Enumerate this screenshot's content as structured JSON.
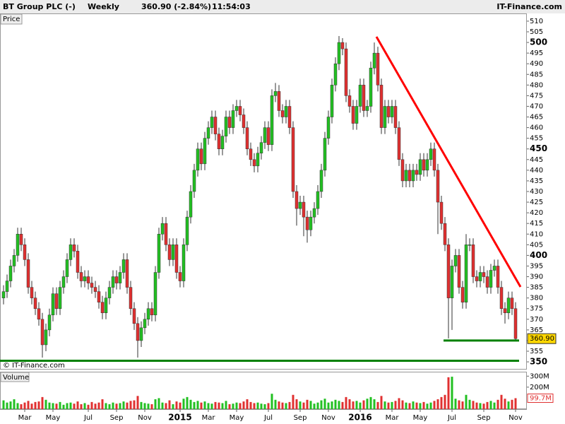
{
  "chart_data": {
    "type": "candlestick",
    "title": "BT Group PLC (-)",
    "period": "Weekly",
    "change": "360.90 (-2.84%)",
    "time": "11:54:03",
    "brand": "IT-Finance.com",
    "price_label": "Price",
    "volume_label": "Volume",
    "copyright": "© IT-Finance.com",
    "up_color": "#22c022",
    "down_color": "#e03030",
    "categories": [
      null,
      null,
      null,
      null,
      null,
      null,
      "Mar",
      null,
      null,
      null,
      null,
      null,
      null,
      null,
      "May",
      null,
      null,
      null,
      null,
      null,
      null,
      null,
      null,
      null,
      "Jul",
      null,
      null,
      null,
      null,
      null,
      null,
      null,
      "Sep",
      null,
      null,
      null,
      null,
      null,
      null,
      null,
      "Nov",
      null,
      null,
      null,
      null,
      null,
      null,
      null,
      null,
      null,
      "2015",
      null,
      null,
      null,
      null,
      null,
      null,
      null,
      "Mar",
      null,
      null,
      null,
      null,
      null,
      null,
      null,
      "May",
      null,
      null,
      null,
      null,
      null,
      null,
      null,
      null,
      "Jul",
      null,
      null,
      null,
      null,
      null,
      null,
      null,
      null,
      "Sep",
      null,
      null,
      null,
      null,
      null,
      null,
      null,
      "Nov",
      null,
      null,
      null,
      null,
      null,
      null,
      null,
      null,
      "2016",
      null,
      null,
      null,
      null,
      null,
      null,
      null,
      null,
      "Mar",
      null,
      null,
      null,
      null,
      null,
      null,
      null,
      "May",
      null,
      null,
      null,
      null,
      null,
      null,
      null,
      null,
      "Jul",
      null,
      null,
      null,
      null,
      null,
      null,
      null,
      null,
      "Sep",
      null,
      null,
      null,
      null,
      null,
      null,
      null,
      null,
      "Nov"
    ],
    "open": [
      380,
      383,
      388,
      395,
      400,
      410,
      405,
      398,
      385,
      380,
      375,
      370,
      358,
      365,
      372,
      382,
      375,
      385,
      390,
      398,
      405,
      402,
      392,
      388,
      390,
      387,
      385,
      383,
      378,
      373,
      380,
      385,
      390,
      387,
      392,
      398,
      385,
      375,
      368,
      360,
      366,
      370,
      375,
      372,
      392,
      410,
      415,
      405,
      398,
      405,
      392,
      388,
      405,
      418,
      430,
      440,
      450,
      443,
      455,
      460,
      465,
      457,
      450,
      456,
      465,
      460,
      468,
      470,
      466,
      460,
      450,
      445,
      442,
      448,
      453,
      460,
      452,
      475,
      477,
      468,
      465,
      470,
      460,
      430,
      422,
      425,
      418,
      412,
      418,
      422,
      430,
      440,
      455,
      465,
      480,
      490,
      500,
      497,
      475,
      470,
      462,
      470,
      480,
      468,
      470,
      488,
      495,
      480,
      460,
      470,
      465,
      470,
      460,
      445,
      435,
      440,
      435,
      440,
      438,
      445,
      440,
      445,
      450,
      440,
      425,
      415,
      405,
      380,
      395,
      400,
      385,
      378,
      405,
      405,
      390,
      388,
      392,
      390,
      385,
      393,
      395,
      385,
      375,
      373,
      380,
      375
    ],
    "high": [
      386,
      391,
      398,
      403,
      413,
      413,
      408,
      401,
      388,
      383,
      378,
      373,
      368,
      375,
      385,
      385,
      388,
      393,
      401,
      408,
      408,
      405,
      395,
      393,
      393,
      390,
      388,
      386,
      381,
      383,
      388,
      393,
      393,
      395,
      401,
      401,
      388,
      378,
      371,
      369,
      373,
      378,
      378,
      395,
      413,
      418,
      418,
      408,
      408,
      408,
      395,
      408,
      421,
      433,
      443,
      453,
      453,
      458,
      463,
      468,
      468,
      460,
      459,
      468,
      468,
      471,
      473,
      473,
      469,
      463,
      453,
      448,
      451,
      456,
      463,
      463,
      478,
      481,
      480,
      471,
      473,
      473,
      463,
      433,
      428,
      428,
      421,
      421,
      425,
      433,
      443,
      458,
      468,
      483,
      493,
      503,
      502,
      500,
      478,
      473,
      473,
      483,
      483,
      473,
      491,
      500,
      498,
      483,
      473,
      473,
      473,
      473,
      463,
      448,
      443,
      443,
      443,
      443,
      448,
      448,
      448,
      453,
      453,
      443,
      428,
      418,
      408,
      398,
      403,
      403,
      388,
      410,
      408,
      408,
      393,
      395,
      395,
      393,
      396,
      398,
      398,
      388,
      378,
      383,
      383,
      378
    ],
    "low": [
      377,
      380,
      385,
      392,
      397,
      402,
      395,
      382,
      377,
      372,
      367,
      352,
      355,
      362,
      369,
      372,
      372,
      382,
      387,
      395,
      399,
      389,
      385,
      385,
      384,
      382,
      380,
      375,
      370,
      370,
      377,
      382,
      384,
      384,
      389,
      382,
      372,
      365,
      352,
      357,
      363,
      367,
      369,
      369,
      389,
      407,
      402,
      395,
      395,
      389,
      385,
      385,
      402,
      415,
      427,
      437,
      440,
      440,
      452,
      457,
      454,
      447,
      447,
      453,
      457,
      457,
      465,
      463,
      457,
      447,
      442,
      439,
      439,
      445,
      450,
      449,
      449,
      472,
      465,
      462,
      462,
      457,
      427,
      414,
      419,
      409,
      406,
      409,
      415,
      419,
      427,
      437,
      452,
      462,
      477,
      487,
      494,
      472,
      467,
      459,
      459,
      467,
      465,
      465,
      467,
      485,
      477,
      457,
      457,
      462,
      462,
      457,
      442,
      432,
      432,
      432,
      432,
      435,
      435,
      437,
      437,
      442,
      437,
      410,
      412,
      402,
      361,
      365,
      392,
      382,
      375,
      375,
      402,
      387,
      385,
      385,
      387,
      382,
      382,
      390,
      382,
      372,
      368,
      370,
      372,
      360
    ],
    "close": [
      383,
      388,
      395,
      400,
      410,
      405,
      398,
      385,
      380,
      375,
      370,
      358,
      365,
      372,
      382,
      375,
      385,
      390,
      398,
      405,
      402,
      392,
      388,
      390,
      387,
      385,
      383,
      378,
      373,
      380,
      385,
      390,
      387,
      392,
      398,
      385,
      375,
      368,
      360,
      366,
      370,
      375,
      372,
      392,
      410,
      415,
      405,
      398,
      405,
      392,
      388,
      405,
      418,
      430,
      440,
      450,
      443,
      455,
      460,
      465,
      457,
      450,
      456,
      465,
      460,
      468,
      470,
      466,
      460,
      450,
      445,
      442,
      448,
      453,
      460,
      452,
      475,
      477,
      468,
      465,
      470,
      460,
      430,
      422,
      425,
      418,
      412,
      418,
      422,
      430,
      440,
      455,
      465,
      480,
      490,
      500,
      497,
      475,
      470,
      462,
      470,
      480,
      468,
      470,
      488,
      495,
      480,
      460,
      470,
      465,
      470,
      460,
      445,
      435,
      440,
      435,
      440,
      438,
      445,
      440,
      445,
      450,
      440,
      425,
      415,
      405,
      380,
      395,
      400,
      385,
      378,
      405,
      405,
      390,
      388,
      392,
      390,
      385,
      393,
      395,
      385,
      375,
      373,
      380,
      375,
      360.9
    ],
    "volume": [
      80,
      60,
      70,
      90,
      55,
      45,
      60,
      75,
      50,
      65,
      70,
      110,
      85,
      60,
      55,
      50,
      65,
      40,
      55,
      60,
      50,
      70,
      45,
      55,
      40,
      65,
      50,
      60,
      90,
      55,
      45,
      60,
      50,
      55,
      70,
      60,
      75,
      80,
      120,
      65,
      55,
      50,
      45,
      90,
      100,
      60,
      55,
      80,
      45,
      70,
      60,
      95,
      110,
      85,
      65,
      75,
      60,
      70,
      55,
      50,
      65,
      60,
      55,
      75,
      45,
      50,
      60,
      55,
      70,
      90,
      65,
      55,
      60,
      50,
      45,
      55,
      140,
      85,
      70,
      60,
      55,
      65,
      130,
      90,
      70,
      60,
      85,
      75,
      50,
      60,
      80,
      95,
      60,
      70,
      85,
      75,
      65,
      110,
      90,
      70,
      75,
      60,
      80,
      95,
      110,
      90,
      65,
      120,
      70,
      60,
      65,
      75,
      100,
      80,
      60,
      55,
      70,
      60,
      55,
      65,
      50,
      60,
      75,
      90,
      110,
      130,
      290,
      295,
      95,
      80,
      70,
      130,
      85,
      75,
      60,
      55,
      50,
      65,
      75,
      60,
      85,
      130,
      95,
      70,
      85,
      99.7
    ],
    "last_price": {
      "value": 360.9,
      "label": "360.90"
    },
    "last_volume": {
      "value": 99.7,
      "label": "99.7M"
    },
    "ylim": [
      346.7,
      513.3
    ],
    "yticks": [
      350,
      355,
      360,
      365,
      370,
      375,
      380,
      385,
      390,
      395,
      400,
      405,
      410,
      415,
      420,
      425,
      430,
      435,
      440,
      445,
      450,
      455,
      460,
      465,
      470,
      475,
      480,
      485,
      490,
      495,
      500,
      505,
      510
    ],
    "volume_ylim": [
      0,
      334
    ],
    "volume_ticks": [
      {
        "value": 200,
        "label": "200M"
      },
      {
        "value": 300,
        "label": "300M"
      }
    ],
    "trendlines": [
      {
        "color": "#ff0000",
        "x": [
          105.6,
          146.4
        ],
        "y": [
          502.7,
          385.2
        ]
      },
      {
        "color": "#008000",
        "x": [
          124.6,
          146
        ],
        "y": [
          360,
          360
        ]
      },
      {
        "color": "#008000",
        "x": [
          -1,
          146
        ],
        "y": [
          350.5,
          350.5
        ]
      }
    ]
  }
}
